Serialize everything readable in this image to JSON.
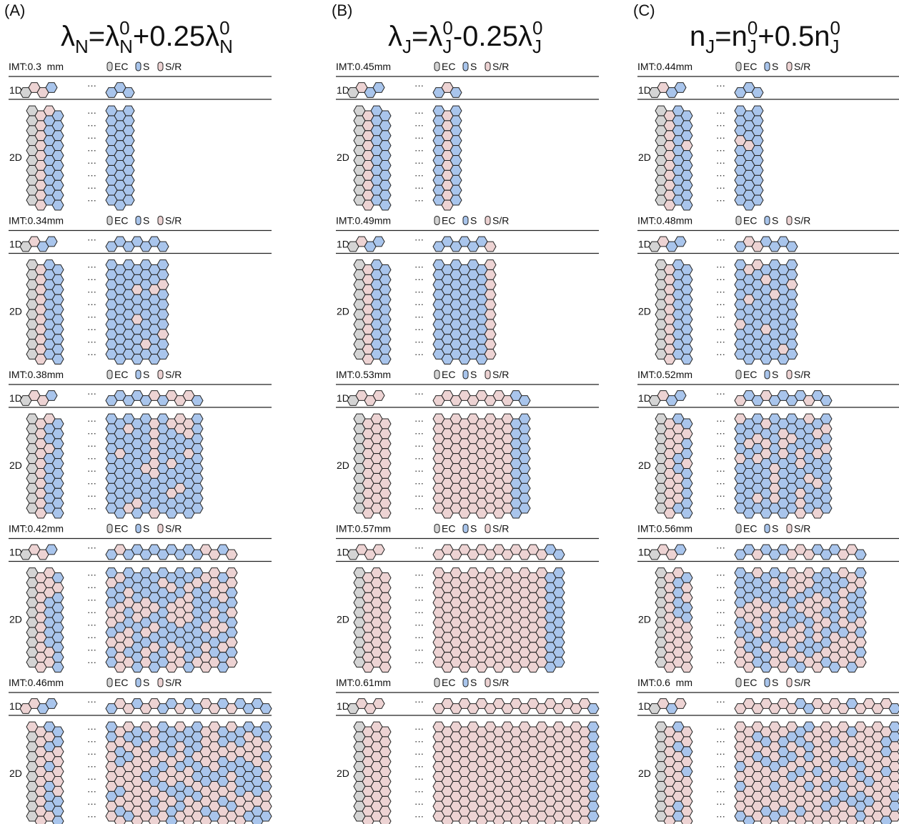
{
  "legend": [
    "EC",
    "S",
    "S/R"
  ],
  "row_labels": [
    "1D",
    "2D"
  ],
  "ellipsis": "···",
  "panels": [
    {
      "label": "(A)",
      "title": [
        "λ",
        "N",
        "=λ",
        "N",
        "0",
        "+0.25λ",
        "N",
        "0"
      ],
      "imts": [
        "IMT:0.3  mm",
        "IMT:0.34mm",
        "IMT:0.38mm",
        "IMT:0.42mm",
        "IMT:0.46mm"
      ]
    },
    {
      "label": "(B)",
      "title": [
        "λ",
        "J",
        "=λ",
        "J",
        "0",
        "-0.25λ",
        "J",
        "0"
      ],
      "imts": [
        "IMT:0.45mm",
        "IMT:0.49mm",
        "IMT:0.53mm",
        "IMT:0.57mm",
        "IMT:0.61mm"
      ]
    },
    {
      "label": "(C)",
      "title": [
        "n",
        "J",
        "=n",
        "J",
        "0",
        "+0.5n",
        "J",
        "0"
      ],
      "imts": [
        "IMT:0.44mm",
        "IMT:0.48mm",
        "IMT:0.52mm",
        "IMT:0.56mm",
        "IMT:0.6  mm"
      ]
    }
  ]
}
